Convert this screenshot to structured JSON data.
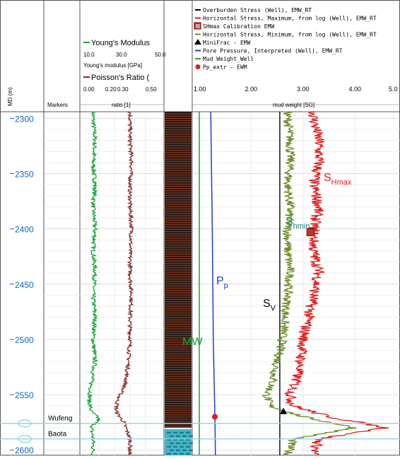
{
  "chart_data": {
    "type": "line",
    "depth_axis": {
      "label": "MD (m)",
      "ticks": [
        2300,
        2350,
        2400,
        2450,
        2500,
        2550,
        2600
      ],
      "range": [
        2294,
        2605
      ]
    },
    "track_headers": {
      "markers": "Markers",
      "ratio_label": "ratio [1]",
      "mud_label": "mud weight [SG]"
    },
    "track_youngs": {
      "legend": "Young's Modulus",
      "unit": "Young's modulus [GPa]",
      "ticks": [
        "10.0",
        "30.0",
        "50.0"
      ],
      "range": [
        10,
        50
      ],
      "color": "#1aa33a",
      "depth": [
        2300,
        2320,
        2340,
        2360,
        2380,
        2400,
        2420,
        2440,
        2460,
        2480,
        2500,
        2520,
        2540,
        2555,
        2565,
        2572,
        2580,
        2590,
        2605
      ],
      "values": [
        15,
        16,
        15,
        16,
        15,
        16,
        15,
        16,
        15,
        16,
        15,
        16,
        14,
        13,
        14,
        18,
        14,
        15,
        15
      ]
    },
    "track_poisson": {
      "legend": "Poisson's Ratio (",
      "ticks": [
        "0.00",
        "0.20",
        "0.30",
        "0.50"
      ],
      "tick_values": [
        0,
        0.2,
        0.3,
        0.5
      ],
      "range": [
        0,
        0.5
      ],
      "color": "#8b2a2a",
      "depth": [
        2300,
        2320,
        2340,
        2360,
        2380,
        2400,
        2420,
        2440,
        2460,
        2480,
        2500,
        2520,
        2540,
        2555,
        2565,
        2575,
        2590,
        2605
      ],
      "values": [
        0.3,
        0.3,
        0.31,
        0.3,
        0.3,
        0.31,
        0.3,
        0.3,
        0.31,
        0.3,
        0.3,
        0.29,
        0.27,
        0.22,
        0.21,
        0.26,
        0.3,
        0.3
      ]
    },
    "track_stress": {
      "ticks": [
        "1.00",
        "2.00",
        "3.00",
        "4.00",
        "5.0"
      ],
      "range": [
        1,
        5
      ],
      "legend": [
        {
          "label": "Overburden Stress (Well), EMW_RT",
          "color": "#000000",
          "symbol": "line"
        },
        {
          "label": "Horizontal Stress, Maximum, from log (Well), EMW_RT",
          "color": "#e41a1c",
          "symbol": "line"
        },
        {
          "label": "SHmax Calibration EMW",
          "color": "#b22222",
          "symbol": "box"
        },
        {
          "label": "Horizontal Stress, Minimum, from log (Well), EMW_RT",
          "color": "#7a8b2e",
          "symbol": "line"
        },
        {
          "label": "MiniFrac - EMW",
          "color": "#000000",
          "symbol": "triangle"
        },
        {
          "label": "Pore Pressure, Interpreted (Well), EMW_RT",
          "color": "#1f3fbf",
          "symbol": "line"
        },
        {
          "label": "Mud Weight_Well",
          "color": "#1aa33a",
          "symbol": "line"
        },
        {
          "label": "Pp_extr - EWM",
          "color": "#e41a1c",
          "symbol": "dot"
        }
      ],
      "series": [
        {
          "name": "SHmax",
          "color": "#e41a1c",
          "depth": [
            2300,
            2320,
            2340,
            2360,
            2380,
            2400,
            2420,
            2440,
            2460,
            2480,
            2500,
            2520,
            2540,
            2550,
            2560,
            2570,
            2580,
            2590,
            2605
          ],
          "values": [
            3.2,
            3.3,
            3.3,
            3.2,
            3.3,
            3.2,
            3.2,
            3.3,
            3.2,
            3.1,
            3.0,
            2.95,
            2.85,
            2.75,
            2.8,
            3.5,
            4.6,
            3.3,
            3.2
          ]
        },
        {
          "name": "Shmin",
          "color": "#6f8a2a",
          "depth": [
            2300,
            2320,
            2340,
            2360,
            2380,
            2400,
            2420,
            2440,
            2460,
            2480,
            2500,
            2520,
            2540,
            2550,
            2560,
            2570,
            2580,
            2590,
            2605
          ],
          "values": [
            2.7,
            2.75,
            2.75,
            2.7,
            2.75,
            2.7,
            2.7,
            2.75,
            2.7,
            2.65,
            2.6,
            2.5,
            2.4,
            2.3,
            2.35,
            3.0,
            4.0,
            2.8,
            2.7
          ]
        },
        {
          "name": "Sv",
          "color": "#000000",
          "depth": [
            2294,
            2605
          ],
          "values": [
            2.55,
            2.55
          ]
        },
        {
          "name": "Pp",
          "color": "#1f3fbf",
          "depth": [
            2294,
            2400,
            2500,
            2570,
            2605
          ],
          "values": [
            1.22,
            1.25,
            1.27,
            1.3,
            1.31
          ]
        },
        {
          "name": "MW",
          "color": "#1aa33a",
          "depth": [
            2294,
            2605
          ],
          "values": [
            1.0,
            1.0
          ]
        }
      ],
      "shmax_calibration": {
        "depth": 2403,
        "value": 3.14
      },
      "minifrac": {
        "depth": 2565,
        "value": 2.62
      },
      "pp_extr": {
        "depth": 2570,
        "value": 1.3
      }
    },
    "markers": [
      {
        "name": "Wufeng",
        "depth": 2576
      },
      {
        "name": "Baota",
        "depth": 2590
      }
    ],
    "annotations": [
      {
        "id": "shmax",
        "main": "S",
        "sub": "Hmax",
        "color": "#e41a1c"
      },
      {
        "id": "shmin",
        "main": "S",
        "sub": "hmin",
        "color": "#1a8a7a"
      },
      {
        "id": "pp",
        "main": "P",
        "sub": "p",
        "color": "#1f3fbf"
      },
      {
        "id": "sv",
        "main": "S",
        "sub": "V",
        "color": "#000000"
      },
      {
        "id": "mw",
        "main": "MW",
        "sub": "",
        "color": "#1aa33a"
      }
    ]
  }
}
